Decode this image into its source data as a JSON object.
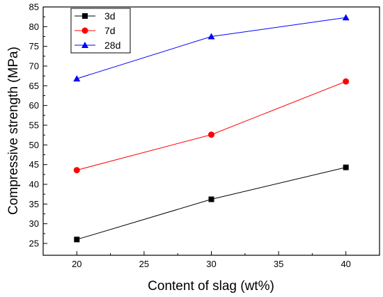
{
  "chart_data": {
    "type": "line",
    "x": [
      20,
      30,
      40
    ],
    "series": [
      {
        "name": "3d",
        "values": [
          26.0,
          36.2,
          44.3
        ],
        "color": "#000000",
        "marker": "square"
      },
      {
        "name": "7d",
        "values": [
          43.6,
          52.6,
          66.1
        ],
        "color": "#ff0000",
        "marker": "circle"
      },
      {
        "name": "28d",
        "values": [
          66.8,
          77.5,
          82.3
        ],
        "color": "#0000ff",
        "marker": "triangle"
      }
    ],
    "title": "",
    "xlabel": "Content of slag  (wt%)",
    "ylabel": "Compressive strength (MPa)",
    "xlim": [
      17.5,
      42.5
    ],
    "ylim": [
      22,
      85
    ],
    "xticks": [
      20,
      25,
      30,
      35,
      40
    ],
    "yticks": [
      25,
      30,
      35,
      40,
      45,
      50,
      55,
      60,
      65,
      70,
      75,
      80,
      85
    ],
    "grid": false,
    "legend_position": "top-left"
  }
}
